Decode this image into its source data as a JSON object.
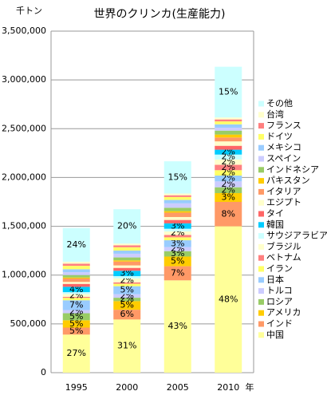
{
  "chart_data": {
    "type": "bar",
    "stacked": true,
    "title": "世界のクリンカ(生産能力)",
    "ylabel": "千トン",
    "xlabel": "年",
    "categories": [
      "1995",
      "2000",
      "2005",
      "2010"
    ],
    "ylim": [
      0,
      3500000
    ],
    "yticks": [
      0,
      {
        "value": 500000,
        "label": "500,000"
      },
      {
        "value": 1000000,
        "label": "1,000,000"
      },
      {
        "value": 1500000,
        "label": "1,500,000"
      },
      {
        "value": 2000000,
        "label": "2,000,000"
      },
      {
        "value": 2500000,
        "label": "2,500,000"
      },
      {
        "value": 3000000,
        "label": "3,000,000"
      },
      {
        "value": 3500000,
        "label": "3,500,000"
      }
    ],
    "grid": true,
    "legend": "right",
    "series": [
      {
        "name": "中国",
        "color": "#ffff99",
        "values": [
          390000,
          545000,
          946000,
          1500000
        ],
        "value_labels": [
          "27%",
          "31%",
          "43%",
          "48%"
        ]
      },
      {
        "name": "インド",
        "color": "#ff9966",
        "values": [
          72000,
          100000,
          145000,
          250000
        ],
        "value_labels": [
          "5%",
          "6%",
          "7%",
          "8%"
        ]
      },
      {
        "name": "アメリカ",
        "color": "#ffcc00",
        "values": [
          75000,
          88000,
          99000,
          90000
        ],
        "value_labels": [
          "5%",
          "5%",
          "5%",
          "3%"
        ]
      },
      {
        "name": "ロシア",
        "color": "#99cc66",
        "values": [
          72000,
          35000,
          55000,
          60000
        ],
        "value_labels": [
          "5%",
          "2%",
          "3%",
          "2%"
        ]
      },
      {
        "name": "トルコ",
        "color": "#ccccff",
        "values": [
          33000,
          36000,
          42000,
          60000
        ],
        "value_labels": [
          "2%",
          "2%",
          "2%",
          "2%"
        ]
      },
      {
        "name": "日本",
        "color": "#99ccff",
        "values": [
          100000,
          82000,
          70000,
          60000
        ],
        "value_labels": [
          "7%",
          "5%",
          "3%",
          "2%"
        ]
      },
      {
        "name": "イラン",
        "color": "#ffff66",
        "values": [
          25000,
          25000,
          30000,
          55000
        ],
        "value_labels": [
          null,
          null,
          null,
          "2%"
        ]
      },
      {
        "name": "ベトナム",
        "color": "#ff8080",
        "values": [
          10000,
          15000,
          25000,
          55000
        ],
        "value_labels": [
          null,
          null,
          null,
          "2%"
        ]
      },
      {
        "name": "ブラジル",
        "color": "#ffffcc",
        "values": [
          28000,
          40000,
          35000,
          55000
        ],
        "value_labels": [
          "2%",
          "2%",
          "2%",
          "2%"
        ]
      },
      {
        "name": "サウジアラビア",
        "color": "#ccffff",
        "values": [
          20000,
          23000,
          28000,
          50000
        ],
        "value_labels": [
          null,
          null,
          null,
          "2%"
        ]
      },
      {
        "name": "韓国",
        "color": "#00ccff",
        "values": [
          55000,
          55000,
          55000,
          50000
        ],
        "value_labels": [
          "4%",
          "3%",
          "3%",
          "2%"
        ]
      },
      {
        "name": "タイ",
        "color": "#ff6666",
        "values": [
          30000,
          30000,
          35000,
          40000
        ],
        "value_labels": [
          null,
          null,
          null,
          null
        ]
      },
      {
        "name": "エジプト",
        "color": "#ffffcc",
        "values": [
          20000,
          25000,
          30000,
          45000
        ],
        "value_labels": [
          null,
          null,
          null,
          null
        ]
      },
      {
        "name": "イタリア",
        "color": "#ff9966",
        "values": [
          35000,
          40000,
          45000,
          40000
        ],
        "value_labels": [
          null,
          null,
          null,
          null
        ]
      },
      {
        "name": "パキスタン",
        "color": "#ffcc00",
        "values": [
          10000,
          12000,
          15000,
          30000
        ],
        "value_labels": [
          null,
          null,
          null,
          null
        ]
      },
      {
        "name": "インドネシア",
        "color": "#99cc66",
        "values": [
          25000,
          30000,
          35000,
          40000
        ],
        "value_labels": [
          null,
          null,
          null,
          null
        ]
      },
      {
        "name": "スペイン",
        "color": "#ccccff",
        "values": [
          30000,
          38000,
          45000,
          30000
        ],
        "value_labels": [
          null,
          null,
          null,
          null
        ]
      },
      {
        "name": "メキシコ",
        "color": "#99ccff",
        "values": [
          30000,
          32000,
          35000,
          35000
        ],
        "value_labels": [
          null,
          null,
          null,
          null
        ]
      },
      {
        "name": "ドイツ",
        "color": "#ffff66",
        "values": [
          35000,
          34000,
          30000,
          30000
        ],
        "value_labels": [
          null,
          null,
          null,
          null
        ]
      },
      {
        "name": "フランス",
        "color": "#ff8080",
        "values": [
          22000,
          20000,
          18000,
          20000
        ],
        "value_labels": [
          null,
          null,
          null,
          null
        ]
      },
      {
        "name": "台湾",
        "color": "#ffffcc",
        "values": [
          20000,
          18000,
          18000,
          20000
        ],
        "value_labels": [
          null,
          null,
          null,
          null
        ]
      },
      {
        "name": "その他",
        "color": "#ccffff",
        "values": [
          345000,
          352000,
          330000,
          520000
        ],
        "value_labels": [
          "24%",
          "20%",
          "15%",
          "15%"
        ]
      }
    ]
  }
}
